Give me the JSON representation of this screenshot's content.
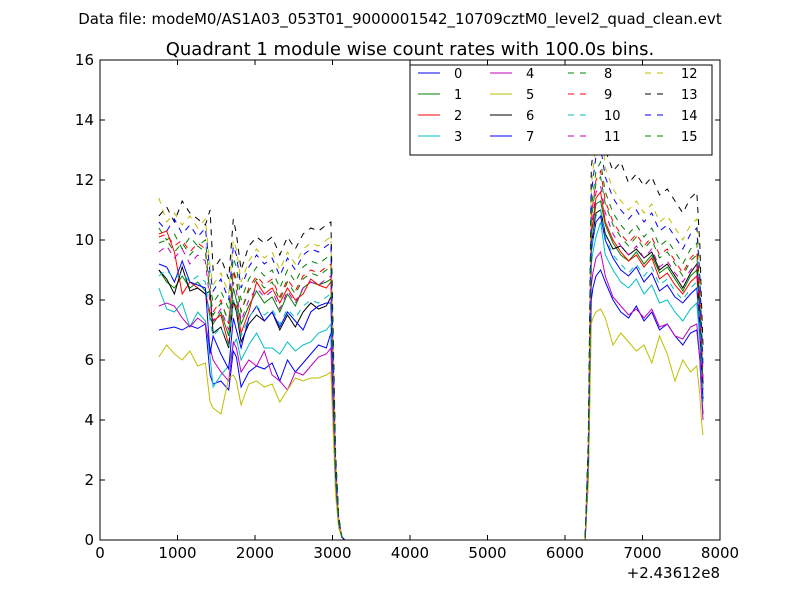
{
  "chart_data": {
    "type": "line",
    "suptitle": "Data file: modeM0/AS1A03_053T01_9000001542_10709cztM0_level2_quad_clean.evt",
    "title": "Quadrant 1 module wise count rates with 100.0s bins.",
    "xlabel": "",
    "ylabel": "",
    "x_offset_label": "+2.43612e8",
    "xlim": [
      0,
      8000
    ],
    "ylim": [
      0,
      16
    ],
    "xticks": [
      "0",
      "1000",
      "2000",
      "3000",
      "4000",
      "5000",
      "6000",
      "7000",
      "8000"
    ],
    "yticks": [
      "0",
      "2",
      "4",
      "6",
      "8",
      "10",
      "12",
      "14",
      "16"
    ],
    "grid": false,
    "legend_location": "top-right",
    "x": [
      760,
      860,
      960,
      1060,
      1160,
      1260,
      1360,
      1420,
      1460,
      1560,
      1660,
      1720,
      1760,
      1820,
      1920,
      2020,
      2120,
      2220,
      2320,
      2420,
      2520,
      2620,
      2720,
      2820,
      2920,
      2980,
      3000,
      3040,
      3080,
      3120,
      3160,
      6260,
      6300,
      6340,
      6360,
      6400,
      6460,
      6520,
      6620,
      6720,
      6820,
      6920,
      7020,
      7120,
      7220,
      7320,
      7420,
      7520,
      7620,
      7700,
      7740,
      7760,
      7780
    ],
    "series": [
      {
        "name": "0",
        "color": "#0000ff",
        "dash": "solid",
        "values": [
          7.0,
          7.05,
          7.1,
          7.0,
          7.15,
          7.05,
          7.2,
          5.5,
          5.2,
          5.3,
          5.0,
          6.3,
          6.1,
          5.1,
          5.6,
          5.8,
          5.7,
          5.9,
          5.3,
          6.0,
          5.6,
          5.9,
          6.2,
          6.5,
          6.4,
          6.9,
          5.0,
          1.8,
          0.5,
          0.1,
          0,
          0,
          2.0,
          8.0,
          8.4,
          8.8,
          9.0,
          8.6,
          8.0,
          7.6,
          7.4,
          7.8,
          7.3,
          7.6,
          7.0,
          7.2,
          6.8,
          6.5,
          6.9,
          7.0,
          6.0,
          5.0,
          4.2
        ]
      },
      {
        "name": "1",
        "color": "#008000",
        "dash": "solid",
        "values": [
          9.0,
          8.6,
          8.4,
          8.8,
          8.4,
          8.6,
          8.3,
          7.4,
          7.2,
          7.6,
          6.8,
          8.4,
          8.0,
          7.2,
          7.8,
          8.3,
          7.9,
          8.1,
          7.6,
          8.2,
          7.8,
          8.4,
          8.6,
          8.5,
          8.6,
          8.7,
          6.5,
          2.4,
          0.6,
          0.1,
          0,
          0,
          2.8,
          10.2,
          10.5,
          11.2,
          11.3,
          10.5,
          9.9,
          9.5,
          9.3,
          9.6,
          9.2,
          9.5,
          8.9,
          9.1,
          8.7,
          8.3,
          8.8,
          9.0,
          7.5,
          6.2,
          5.2
        ]
      },
      {
        "name": "2",
        "color": "#ff0000",
        "dash": "solid",
        "values": [
          10.2,
          10.3,
          9.6,
          8.2,
          8.6,
          8.4,
          8.2,
          7.6,
          7.3,
          7.5,
          6.5,
          7.9,
          7.8,
          6.9,
          7.6,
          8.6,
          8.2,
          8.4,
          7.9,
          8.4,
          8.0,
          8.2,
          8.7,
          8.5,
          8.4,
          8.6,
          6.6,
          2.3,
          0.6,
          0.1,
          0,
          0,
          2.8,
          10.3,
          10.6,
          11.4,
          11.6,
          10.6,
          10.0,
          9.6,
          9.3,
          9.5,
          9.1,
          9.4,
          8.7,
          8.9,
          8.5,
          8.2,
          8.6,
          8.8,
          7.4,
          6.1,
          5.0
        ]
      },
      {
        "name": "3",
        "color": "#00bfbf",
        "dash": "solid",
        "values": [
          8.4,
          7.7,
          7.6,
          7.9,
          7.1,
          7.6,
          7.3,
          6.1,
          5.1,
          5.5,
          5.8,
          6.5,
          6.7,
          6.0,
          6.5,
          6.9,
          6.4,
          6.4,
          6.2,
          6.6,
          6.3,
          6.5,
          6.6,
          6.9,
          7.0,
          7.2,
          5.4,
          1.9,
          0.5,
          0.1,
          0,
          0,
          2.5,
          9.2,
          9.6,
          10.1,
          10.6,
          9.5,
          9.0,
          8.6,
          8.4,
          8.7,
          8.2,
          8.5,
          7.9,
          8.0,
          7.6,
          7.3,
          7.7,
          7.9,
          6.6,
          5.5,
          4.6
        ]
      },
      {
        "name": "4",
        "color": "#bf00bf",
        "dash": "solid",
        "values": [
          7.8,
          7.9,
          7.8,
          7.4,
          7.1,
          7.4,
          7.2,
          6.4,
          6.0,
          5.6,
          5.3,
          6.6,
          6.4,
          5.6,
          6.0,
          5.8,
          6.3,
          5.5,
          5.3,
          5.0,
          5.6,
          5.5,
          5.8,
          6.1,
          6.2,
          6.4,
          4.9,
          1.7,
          0.5,
          0.1,
          0,
          0,
          2.3,
          8.5,
          8.9,
          9.4,
          9.6,
          8.8,
          8.1,
          7.8,
          7.5,
          7.7,
          7.4,
          7.7,
          7.1,
          7.2,
          6.8,
          6.7,
          7.1,
          7.2,
          6.0,
          4.9,
          4.0
        ]
      },
      {
        "name": "5",
        "color": "#bfbf00",
        "dash": "solid",
        "values": [
          6.1,
          6.5,
          6.2,
          6.0,
          6.3,
          5.8,
          5.9,
          4.6,
          4.4,
          4.2,
          5.4,
          5.5,
          5.3,
          4.5,
          5.2,
          5.3,
          5.1,
          5.2,
          4.6,
          5.0,
          5.4,
          5.3,
          5.4,
          5.4,
          5.5,
          5.6,
          4.2,
          1.5,
          0.4,
          0.1,
          0,
          0,
          1.9,
          7.2,
          7.4,
          7.6,
          7.7,
          7.4,
          6.5,
          6.9,
          6.6,
          6.3,
          6.5,
          5.9,
          6.8,
          6.2,
          5.3,
          6.0,
          5.6,
          5.8,
          4.8,
          4.0,
          3.5
        ]
      },
      {
        "name": "6",
        "color": "#000000",
        "dash": "solid",
        "values": [
          9.0,
          8.7,
          8.2,
          9.1,
          8.3,
          8.4,
          8.2,
          8.3,
          6.9,
          7.1,
          6.4,
          8.0,
          7.6,
          6.6,
          7.2,
          7.5,
          7.3,
          7.6,
          7.0,
          7.5,
          7.1,
          7.6,
          7.9,
          7.7,
          7.8,
          8.1,
          6.1,
          2.2,
          0.6,
          0.1,
          0,
          0,
          2.7,
          9.8,
          10.2,
          10.9,
          11.0,
          10.2,
          9.7,
          9.8,
          9.5,
          9.7,
          9.4,
          9.6,
          9.0,
          9.2,
          8.8,
          8.4,
          8.9,
          9.2,
          7.6,
          6.3,
          5.2
        ]
      },
      {
        "name": "7",
        "color": "#0000ff",
        "dash": "solid",
        "values": [
          9.2,
          9.1,
          8.6,
          9.3,
          8.6,
          8.5,
          8.4,
          6.2,
          6.8,
          6.2,
          5.7,
          7.4,
          7.0,
          6.4,
          7.4,
          7.8,
          7.3,
          7.6,
          7.1,
          7.6,
          7.3,
          7.0,
          7.6,
          7.8,
          7.9,
          7.9,
          5.9,
          2.1,
          0.6,
          0.1,
          0,
          0,
          2.6,
          9.6,
          10.0,
          10.6,
          10.8,
          10.0,
          9.4,
          9.0,
          8.8,
          9.1,
          8.6,
          8.9,
          8.3,
          8.5,
          8.1,
          7.9,
          8.2,
          8.4,
          7.0,
          5.8,
          4.7
        ]
      },
      {
        "name": "8",
        "color": "#008000",
        "dash": "dashed",
        "values": [
          10.4,
          10.0,
          10.2,
          9.7,
          10.1,
          9.8,
          10.0,
          8.5,
          7.9,
          8.3,
          7.7,
          9.4,
          9.1,
          8.0,
          8.7,
          9.1,
          8.8,
          9.0,
          8.4,
          9.0,
          8.6,
          9.1,
          9.3,
          9.2,
          9.4,
          9.5,
          7.1,
          2.6,
          0.7,
          0.1,
          0,
          0,
          3.0,
          11.0,
          11.5,
          12.3,
          12.6,
          11.6,
          10.9,
          10.5,
          10.2,
          10.5,
          10.1,
          10.4,
          9.8,
          10.0,
          9.6,
          9.2,
          9.7,
          9.9,
          8.3,
          6.8,
          5.6
        ]
      },
      {
        "name": "9",
        "color": "#ff0000",
        "dash": "dashed",
        "values": [
          10.1,
          10.2,
          9.8,
          10.0,
          9.6,
          9.9,
          9.7,
          8.2,
          7.6,
          8.0,
          7.2,
          9.0,
          8.7,
          7.6,
          8.4,
          8.8,
          8.5,
          8.7,
          8.1,
          8.7,
          8.3,
          8.8,
          9.0,
          8.9,
          9.1,
          9.2,
          6.9,
          2.5,
          0.7,
          0.1,
          0,
          0,
          2.9,
          10.8,
          11.2,
          12.0,
          12.3,
          11.3,
          10.6,
          10.2,
          9.9,
          10.2,
          9.8,
          10.1,
          9.5,
          9.7,
          9.3,
          8.9,
          9.4,
          9.6,
          8.0,
          6.6,
          5.4
        ]
      },
      {
        "name": "10",
        "color": "#00bfbf",
        "dash": "dashed",
        "values": [
          8.8,
          9.0,
          8.7,
          8.9,
          8.6,
          8.8,
          8.6,
          7.3,
          6.8,
          7.1,
          6.5,
          8.0,
          7.7,
          6.8,
          7.4,
          7.8,
          7.5,
          7.7,
          7.2,
          7.7,
          7.4,
          7.8,
          8.0,
          7.9,
          8.1,
          8.2,
          6.2,
          2.2,
          0.6,
          0.1,
          0,
          0,
          2.6,
          9.7,
          10.1,
          10.8,
          11.0,
          10.1,
          9.5,
          9.2,
          8.9,
          9.2,
          8.8,
          9.1,
          8.5,
          8.7,
          8.3,
          8.0,
          8.4,
          8.6,
          7.2,
          5.9,
          4.8
        ]
      },
      {
        "name": "11",
        "color": "#bf00bf",
        "dash": "dashed",
        "values": [
          9.6,
          9.8,
          9.4,
          9.7,
          9.2,
          9.5,
          9.3,
          7.9,
          7.3,
          7.7,
          7.0,
          8.6,
          8.3,
          7.3,
          8.0,
          8.4,
          8.1,
          8.3,
          7.7,
          8.3,
          7.9,
          8.4,
          8.6,
          8.5,
          8.7,
          8.8,
          6.6,
          2.4,
          0.7,
          0.1,
          0,
          0,
          2.8,
          10.4,
          10.8,
          11.6,
          11.8,
          10.9,
          10.2,
          9.8,
          9.5,
          9.8,
          9.4,
          9.7,
          9.1,
          9.3,
          8.9,
          8.6,
          9.0,
          9.2,
          7.7,
          6.3,
          5.2
        ]
      },
      {
        "name": "12",
        "color": "#bfbf00",
        "dash": "dashed",
        "values": [
          11.4,
          10.6,
          10.9,
          10.5,
          10.8,
          10.4,
          10.7,
          9.1,
          8.5,
          8.9,
          8.2,
          10.0,
          9.7,
          8.6,
          9.3,
          9.7,
          9.4,
          9.6,
          9.0,
          9.6,
          9.2,
          9.7,
          9.9,
          9.8,
          10.0,
          10.1,
          7.6,
          2.8,
          0.7,
          0.1,
          0,
          0,
          3.2,
          11.8,
          12.3,
          13.2,
          14.2,
          12.4,
          11.7,
          11.3,
          11.0,
          11.3,
          10.9,
          11.2,
          10.6,
          10.8,
          10.4,
          10.0,
          10.5,
          10.7,
          9.0,
          7.4,
          6.0
        ]
      },
      {
        "name": "13",
        "color": "#000000",
        "dash": "dashed",
        "values": [
          10.8,
          11.1,
          10.6,
          11.3,
          10.9,
          10.7,
          10.5,
          11.0,
          9.0,
          9.4,
          8.7,
          10.7,
          10.2,
          9.0,
          9.8,
          10.1,
          9.9,
          10.1,
          9.5,
          10.1,
          9.7,
          10.2,
          10.4,
          10.3,
          10.5,
          10.6,
          8.0,
          2.9,
          0.8,
          0.1,
          0,
          0,
          3.4,
          12.4,
          12.9,
          13.8,
          14.5,
          13.0,
          12.3,
          12.6,
          11.9,
          12.2,
          11.8,
          12.1,
          11.5,
          11.7,
          11.3,
          10.9,
          11.4,
          11.6,
          9.8,
          8.0,
          6.5
        ]
      },
      {
        "name": "14",
        "color": "#0000ff",
        "dash": "dashed",
        "values": [
          10.6,
          10.3,
          10.7,
          10.2,
          10.5,
          10.1,
          10.4,
          8.9,
          8.3,
          8.7,
          8.0,
          9.8,
          9.5,
          8.4,
          9.1,
          9.5,
          9.2,
          9.4,
          8.8,
          9.4,
          9.0,
          9.5,
          9.7,
          9.6,
          9.8,
          9.9,
          7.4,
          2.7,
          0.7,
          0.1,
          0,
          0,
          3.1,
          11.5,
          12.0,
          12.8,
          13.1,
          12.1,
          11.4,
          11.0,
          10.7,
          11.0,
          10.6,
          10.9,
          10.3,
          10.5,
          10.1,
          9.7,
          10.2,
          10.4,
          8.7,
          7.2,
          5.8
        ]
      },
      {
        "name": "15",
        "color": "#008000",
        "dash": "dashed",
        "values": [
          9.9,
          10.0,
          9.6,
          9.9,
          9.5,
          9.8,
          9.6,
          8.1,
          7.5,
          7.9,
          7.3,
          8.9,
          8.6,
          7.6,
          8.3,
          8.7,
          8.4,
          8.6,
          8.0,
          8.6,
          8.2,
          8.7,
          8.9,
          8.8,
          9.0,
          9.1,
          6.8,
          2.5,
          0.7,
          0.1,
          0,
          0,
          2.9,
          10.7,
          11.1,
          11.9,
          12.1,
          11.2,
          10.5,
          10.1,
          9.8,
          10.1,
          9.7,
          10.0,
          9.4,
          9.6,
          9.2,
          8.8,
          9.3,
          9.5,
          7.9,
          6.5,
          5.3
        ]
      }
    ]
  }
}
